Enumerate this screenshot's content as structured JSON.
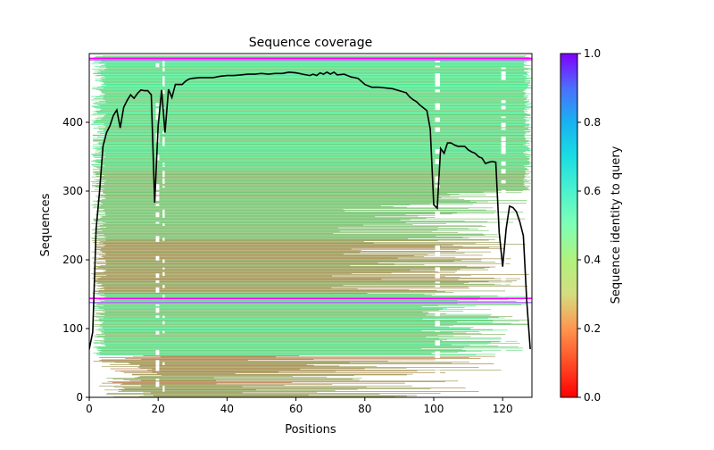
{
  "chart_data": {
    "type": "heatmap",
    "title": "Sequence coverage",
    "xlabel": "Positions",
    "ylabel": "Sequences",
    "xlim": [
      0,
      128.5
    ],
    "ylim": [
      0,
      500
    ],
    "xticks": [
      "0",
      "20",
      "40",
      "60",
      "80",
      "100",
      "120"
    ],
    "xtick_values": [
      0,
      20,
      40,
      60,
      80,
      100,
      120
    ],
    "yticks": [
      "0",
      "100",
      "200",
      "300",
      "400"
    ],
    "ytick_values": [
      0,
      100,
      200,
      300,
      400
    ],
    "colorbar": {
      "label": "Sequence identity to query",
      "ticks": [
        "0.0",
        "0.2",
        "0.4",
        "0.6",
        "0.8",
        "1.0"
      ],
      "tick_values": [
        0,
        0.2,
        0.4,
        0.6,
        0.8,
        1.0
      ],
      "colormap": "rainbow"
    },
    "coverage_line": {
      "x": [
        0,
        1,
        2,
        3,
        4,
        5,
        6,
        7,
        8,
        9,
        10,
        11,
        12,
        13,
        14,
        15,
        16,
        17,
        18,
        19,
        20,
        21,
        22,
        23,
        24,
        25,
        26,
        27,
        28,
        29,
        30,
        32,
        34,
        36,
        38,
        40,
        42,
        44,
        46,
        48,
        50,
        52,
        54,
        56,
        58,
        60,
        61,
        62,
        63,
        64,
        65,
        66,
        67,
        68,
        69,
        70,
        71,
        72,
        74,
        76,
        78,
        80,
        82,
        84,
        86,
        88,
        90,
        92,
        93,
        94,
        95,
        96,
        97,
        98,
        99,
        100,
        101,
        102,
        103,
        104,
        105,
        106,
        107,
        108,
        109,
        110,
        111,
        112,
        113,
        114,
        115,
        116,
        117,
        118,
        119,
        120,
        121,
        122,
        123,
        124,
        125,
        126,
        127,
        128
      ],
      "y": [
        70,
        95,
        245,
        300,
        365,
        385,
        395,
        410,
        418,
        392,
        422,
        432,
        440,
        435,
        442,
        447,
        446,
        446,
        440,
        283,
        395,
        447,
        385,
        448,
        436,
        455,
        455,
        455,
        460,
        463,
        464,
        465,
        465,
        465,
        467,
        468,
        468,
        469,
        470,
        470,
        471,
        470,
        471,
        471,
        473,
        472,
        471,
        470,
        469,
        468,
        470,
        468,
        472,
        470,
        473,
        470,
        473,
        469,
        470,
        466,
        464,
        455,
        451,
        451,
        450,
        449,
        446,
        443,
        437,
        433,
        430,
        425,
        421,
        417,
        390,
        280,
        275,
        362,
        355,
        370,
        370,
        367,
        365,
        365,
        365,
        360,
        357,
        355,
        350,
        348,
        340,
        342,
        343,
        342,
        240,
        190,
        245,
        278,
        276,
        270,
        255,
        235,
        140,
        70
      ]
    },
    "highlight_rows": [
      {
        "y": 494,
        "identity": 1.0
      },
      {
        "y": 492,
        "identity": 0.85
      },
      {
        "y": 145,
        "identity": 1.0
      },
      {
        "y": 139,
        "identity": 0.85
      }
    ],
    "n_sequences": 497
  }
}
